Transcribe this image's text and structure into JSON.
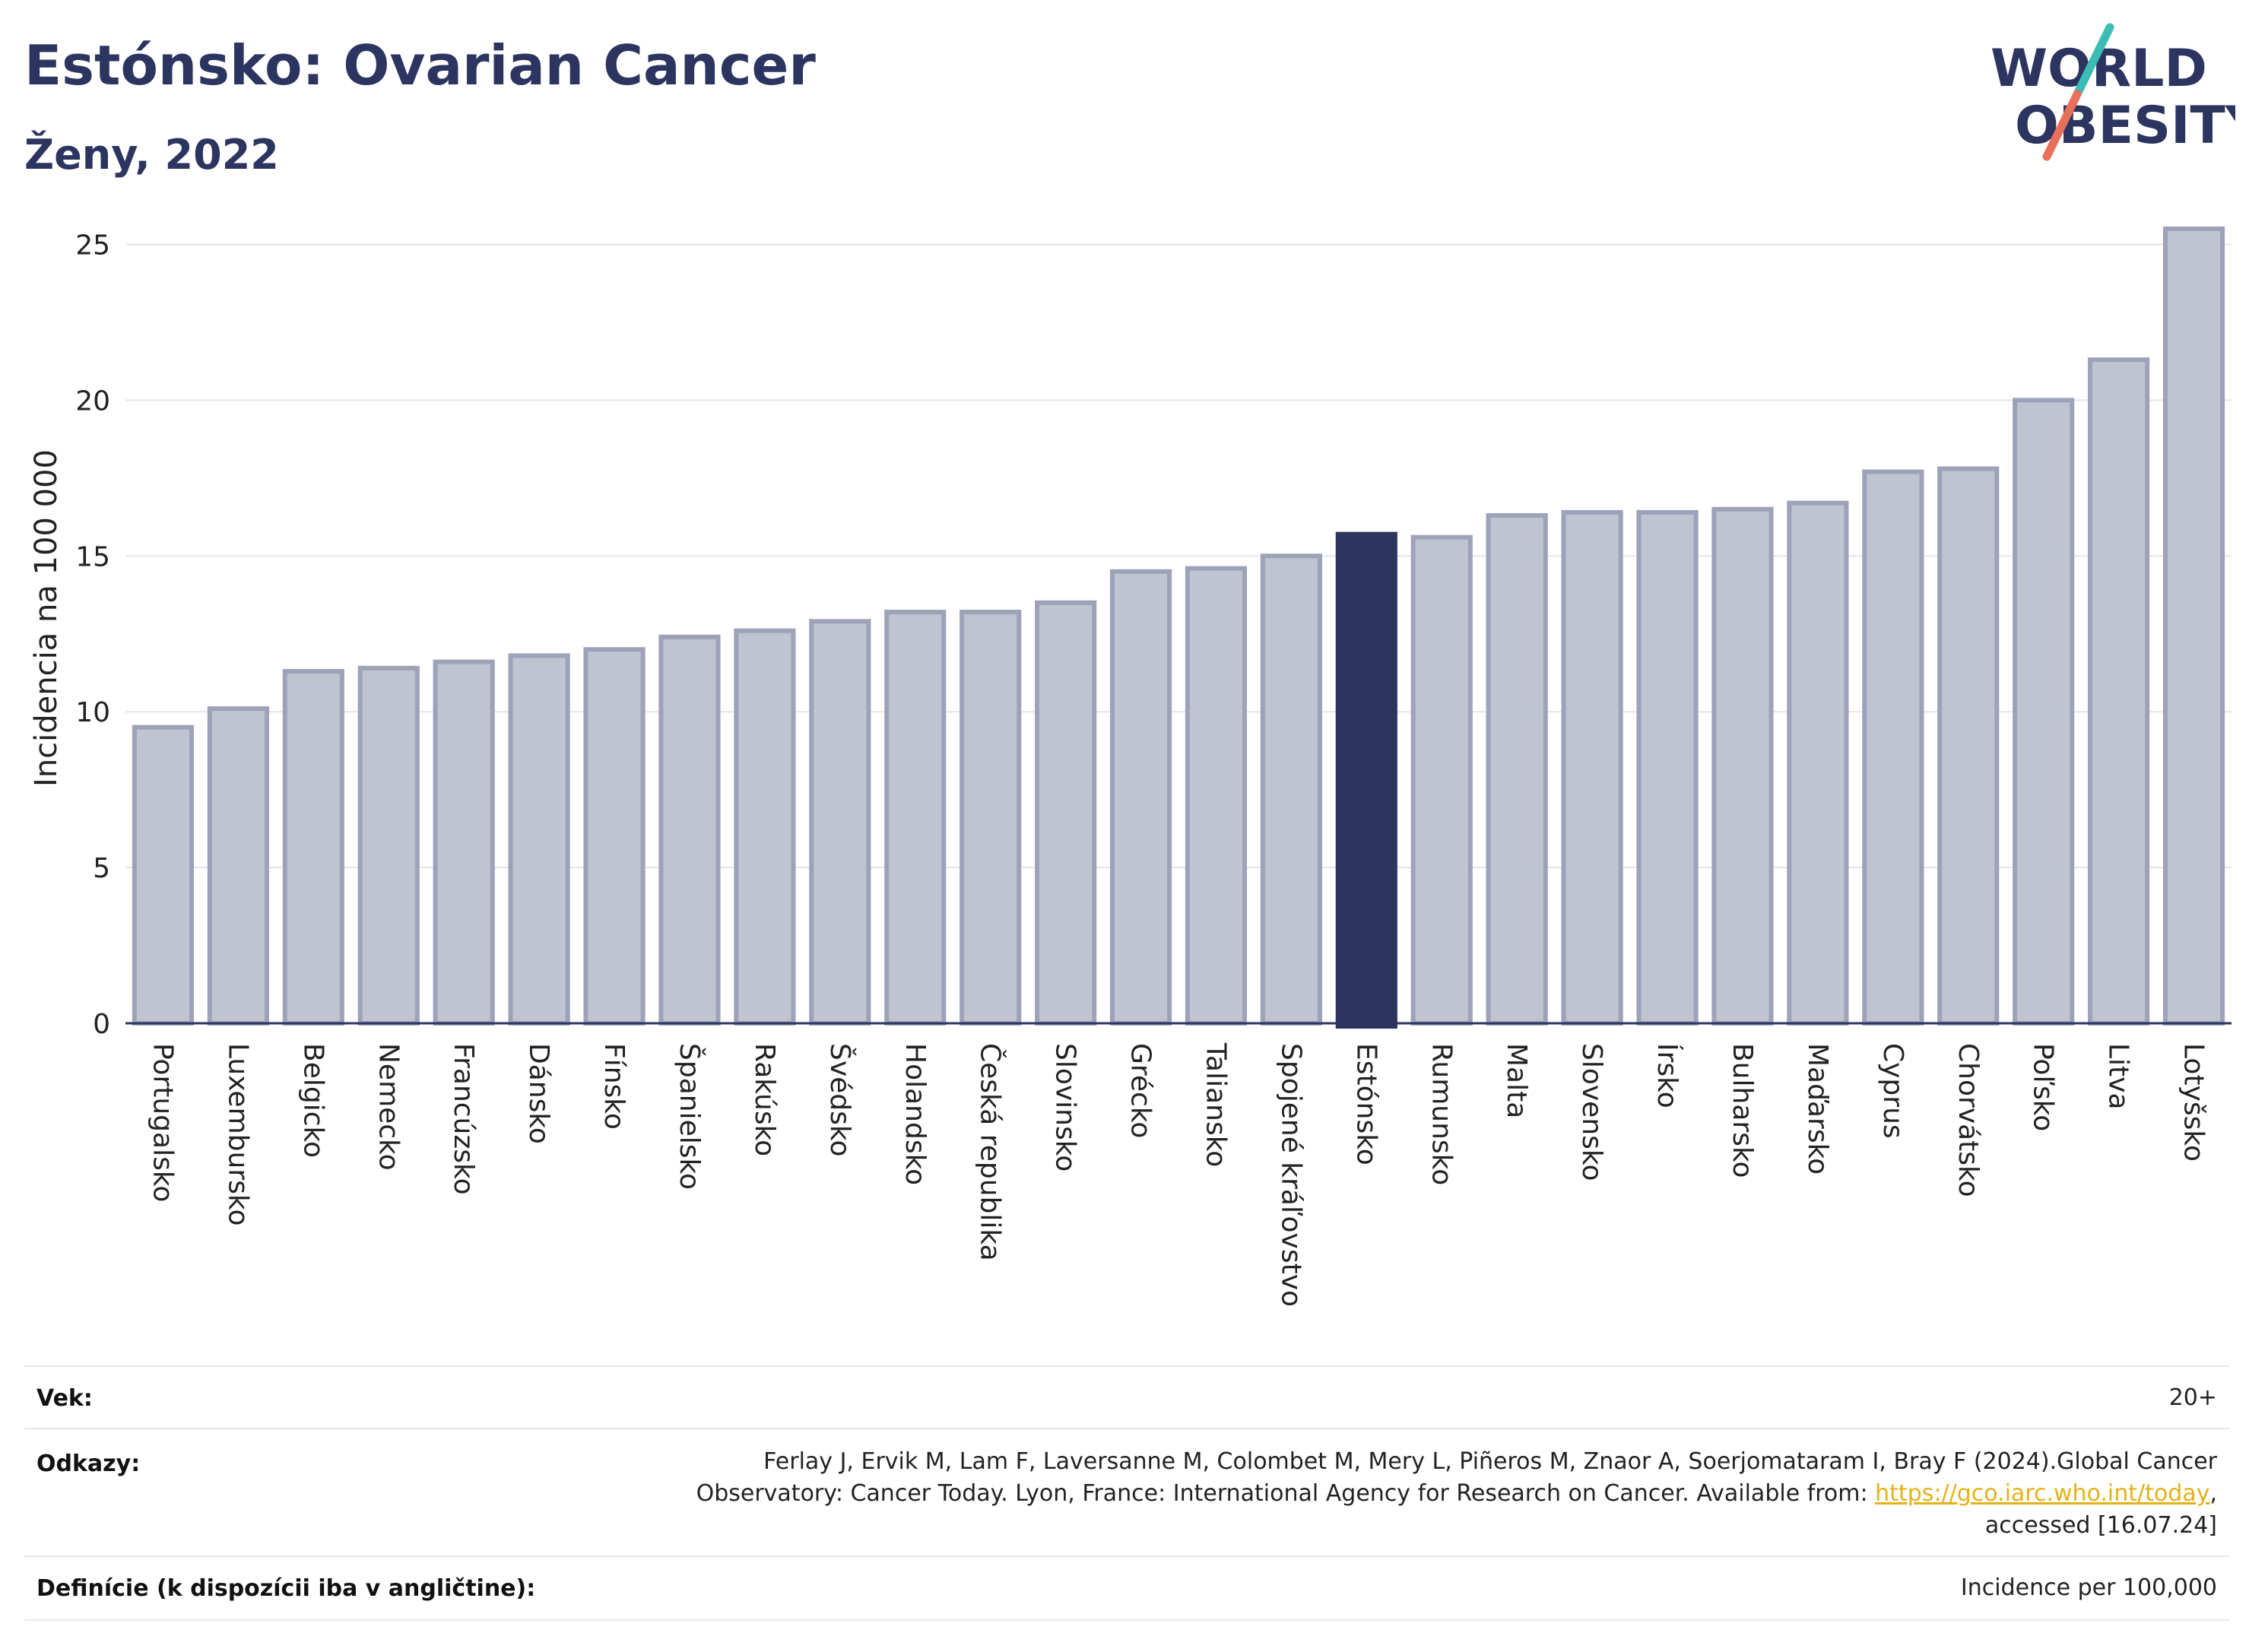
{
  "header": {
    "title": "Estónsko: Ovarian Cancer",
    "subtitle": "Ženy, 2022"
  },
  "logo": {
    "line1": "WORLD",
    "line2": "OBESITY",
    "colors": {
      "text": "#2c3560",
      "slash_teal": "#3bbdb5",
      "slash_coral": "#e8705a"
    }
  },
  "chart_data": {
    "type": "bar",
    "ylabel": "Incidencia na 100 000",
    "ylim": [
      0,
      26.5
    ],
    "yticks": [
      0,
      5,
      10,
      15,
      20,
      25
    ],
    "grid": true,
    "highlight": "Estónsko",
    "colors": {
      "bar": "#c0c3d0",
      "bar_stroke": "#9da2b8",
      "highlight": "#2c3560"
    },
    "categories": [
      "Portugalsko",
      "Luxembursko",
      "Belgicko",
      "Nemecko",
      "Francúzsko",
      "Dánsko",
      "Fínsko",
      "Španielsko",
      "Rakúsko",
      "Švédsko",
      "Holandsko",
      "Česká republika",
      "Slovinsko",
      "Grécko",
      "Taliansko",
      "Spojené kráľovstvo",
      "Estónsko",
      "Rumunsko",
      "Malta",
      "Slovensko",
      "Írsko",
      "Bulharsko",
      "Maďarsko",
      "Cyprus",
      "Chorvátsko",
      "Poľsko",
      "Litva",
      "Lotyšsko"
    ],
    "values": [
      9.5,
      10.1,
      11.3,
      11.4,
      11.6,
      11.8,
      12.0,
      12.4,
      12.6,
      12.9,
      13.2,
      13.2,
      13.5,
      14.5,
      14.6,
      15.0,
      15.7,
      15.6,
      16.3,
      16.4,
      16.4,
      16.5,
      16.7,
      17.7,
      17.8,
      20.0,
      21.3,
      25.5
    ]
  },
  "footer": {
    "age_label": "Vek:",
    "age_value": "20+",
    "refs_label": "Odkazy:",
    "refs_text_1": "Ferlay J, Ervik M, Lam F, Laversanne M, Colombet M, Mery L, Piñeros M, Znaor A, Soerjomataram I, Bray F (2024).Global Cancer",
    "refs_text_2": "Observatory: Cancer Today. Lyon, France: International Agency for Research on Cancer. Available from: ",
    "refs_link": "https://gco.iarc.who.int/today",
    "refs_text_3": ",",
    "refs_text_4": "accessed [16.07.24]",
    "def_label": "Definície (k dispozícii iba v angličtine):",
    "def_value": "Incidence per 100,000"
  }
}
